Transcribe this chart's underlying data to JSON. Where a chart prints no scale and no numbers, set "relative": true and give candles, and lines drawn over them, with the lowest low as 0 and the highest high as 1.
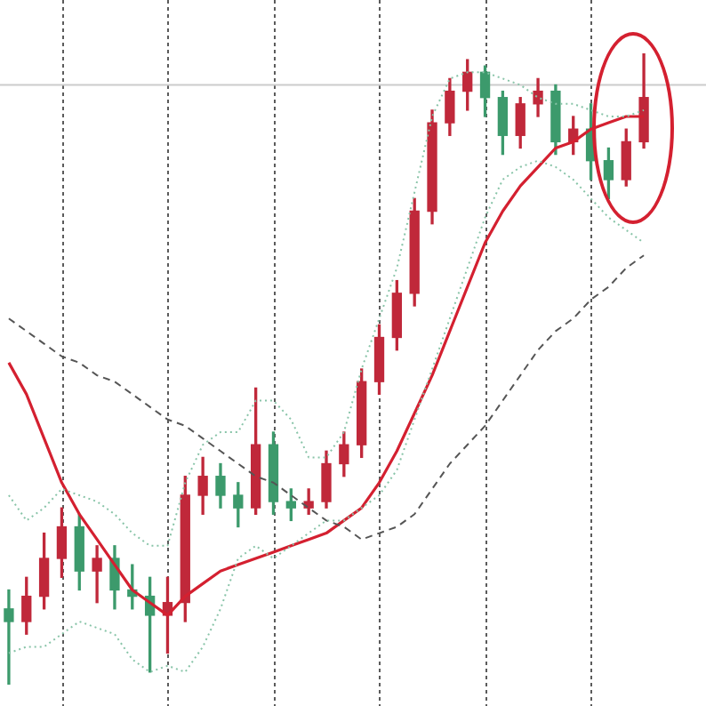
{
  "chart_data": {
    "type": "candlestick",
    "relative": true,
    "tick_labels": false,
    "grid": "x",
    "marker": "none",
    "categories": [
      null,
      null,
      null,
      null,
      null,
      null,
      null,
      null,
      null,
      null,
      null,
      null,
      null,
      null,
      null,
      null,
      null,
      null,
      null,
      null,
      null,
      null,
      null,
      null,
      null,
      null,
      null,
      null,
      null,
      null,
      null,
      null,
      null,
      null,
      null,
      null,
      null
    ],
    "ohlc": [
      [
        0.12,
        0.15,
        0,
        0.1
      ],
      [
        0.1,
        0.17,
        0.08,
        0.14
      ],
      [
        0.14,
        0.24,
        0.12,
        0.2
      ],
      [
        0.2,
        0.28,
        0.17,
        0.25
      ],
      [
        0.25,
        0.27,
        0.15,
        0.18
      ],
      [
        0.18,
        0.22,
        0.13,
        0.2
      ],
      [
        0.2,
        0.22,
        0.12,
        0.15
      ],
      [
        0.15,
        0.19,
        0.12,
        0.14
      ],
      [
        0.14,
        0.17,
        0.02,
        0.11
      ],
      [
        0.11,
        0.17,
        0.05,
        0.13
      ],
      [
        0.13,
        0.33,
        0.1,
        0.3
      ],
      [
        0.3,
        0.36,
        0.27,
        0.33
      ],
      [
        0.33,
        0.35,
        0.28,
        0.3
      ],
      [
        0.3,
        0.32,
        0.25,
        0.28
      ],
      [
        0.28,
        0.47,
        0.27,
        0.38
      ],
      [
        0.38,
        0.4,
        0.27,
        0.29
      ],
      [
        0.29,
        0.31,
        0.26,
        0.28
      ],
      [
        0.28,
        0.31,
        0.27,
        0.29
      ],
      [
        0.29,
        0.37,
        0.28,
        0.35
      ],
      [
        0.35,
        0.4,
        0.33,
        0.38
      ],
      [
        0.38,
        0.5,
        0.36,
        0.48
      ],
      [
        0.48,
        0.57,
        0.46,
        0.55
      ],
      [
        0.55,
        0.64,
        0.53,
        0.62
      ],
      [
        0.62,
        0.77,
        0.6,
        0.75
      ],
      [
        0.75,
        0.91,
        0.73,
        0.89
      ],
      [
        0.89,
        0.96,
        0.87,
        0.94
      ],
      [
        0.94,
        0.99,
        0.91,
        0.97
      ],
      [
        0.97,
        0.98,
        0.9,
        0.93
      ],
      [
        0.93,
        0.94,
        0.84,
        0.87
      ],
      [
        0.87,
        0.93,
        0.85,
        0.92
      ],
      [
        0.92,
        0.96,
        0.9,
        0.94
      ],
      [
        0.94,
        0.95,
        0.84,
        0.86
      ],
      [
        0.86,
        0.9,
        0.84,
        0.88
      ],
      [
        0.88,
        0.92,
        0.8,
        0.83
      ],
      [
        0.83,
        0.85,
        0.77,
        0.8
      ],
      [
        0.8,
        0.88,
        0.79,
        0.86
      ],
      [
        0.86,
        1,
        0.85,
        0.93
      ]
    ],
    "colors": [
      "#3c9a6c",
      "#c0283a",
      "#c0283a",
      "#c0283a",
      "#3c9a6c",
      "#c0283a",
      "#3c9a6c",
      "#3c9a6c",
      "#3c9a6c",
      "#c0283a",
      "#c0283a",
      "#c0283a",
      "#3c9a6c",
      "#3c9a6c",
      "#c0283a",
      "#3c9a6c",
      "#3c9a6c",
      "#c0283a",
      "#c0283a",
      "#c0283a",
      "#c0283a",
      "#c0283a",
      "#c0283a",
      "#c0283a",
      "#c0283a",
      "#c0283a",
      "#c0283a",
      "#3c9a6c",
      "#3c9a6c",
      "#c0283a",
      "#c0283a",
      "#3c9a6c",
      "#c0283a",
      "#3c9a6c",
      "#3c9a6c",
      "#c0283a",
      "#c0283a"
    ],
    "series": [
      {
        "type": "line",
        "color": "#88c4a8",
        "line_style": "dotted",
        "values": [
          0.3,
          0.26,
          0.28,
          0.31,
          0.3,
          0.29,
          0.27,
          0.24,
          0.22,
          0.22,
          0.32,
          0.38,
          0.4,
          0.4,
          0.45,
          0.45,
          0.42,
          0.36,
          0.36,
          0.4,
          0.5,
          0.58,
          0.66,
          0.78,
          0.9,
          0.96,
          0.97,
          0.97,
          0.96,
          0.95,
          0.93,
          0.92,
          0.92,
          0.91,
          0.9,
          0.9,
          0.91
        ]
      },
      {
        "type": "line",
        "color": "#88c4a8",
        "line_style": "dotted",
        "values": [
          0.05,
          0.06,
          0.06,
          0.08,
          0.1,
          0.09,
          0.08,
          0.04,
          0.02,
          0.03,
          0.02,
          0.06,
          0.12,
          0.2,
          0.22,
          0.2,
          0.22,
          0.24,
          0.26,
          0.26,
          0.28,
          0.3,
          0.34,
          0.42,
          0.5,
          0.58,
          0.66,
          0.74,
          0.8,
          0.82,
          0.83,
          0.82,
          0.8,
          0.77,
          0.74,
          0.72,
          0.7
        ]
      },
      {
        "type": "line",
        "color": "#555555",
        "line_style": "dashed",
        "values": [
          0.58,
          0.56,
          0.54,
          0.52,
          0.51,
          0.49,
          0.48,
          0.46,
          0.44,
          0.42,
          0.41,
          0.39,
          0.37,
          0.35,
          0.33,
          0.32,
          0.3,
          0.28,
          0.26,
          0.25,
          0.23,
          0.24,
          0.25,
          0.27,
          0.31,
          0.35,
          0.38,
          0.41,
          0.45,
          0.49,
          0.53,
          0.56,
          0.58,
          0.61,
          0.63,
          0.66,
          0.68
        ]
      },
      {
        "type": "line",
        "color": "#d42030",
        "line_style": "solid",
        "values": [
          0.51,
          0.46,
          0.39,
          0.32,
          0.27,
          0.23,
          0.19,
          0.15,
          0.13,
          0.11,
          0.14,
          0.16,
          0.18,
          0.19,
          0.2,
          0.21,
          0.22,
          0.23,
          0.24,
          0.26,
          0.28,
          0.32,
          0.37,
          0.43,
          0.49,
          0.56,
          0.63,
          0.7,
          0.75,
          0.79,
          0.82,
          0.85,
          0.86,
          0.88,
          0.89,
          0.9,
          0.9
        ]
      }
    ],
    "ref_lines": [
      {
        "axis": "y",
        "value": 0.95,
        "color": "#cccccc"
      }
    ]
  }
}
